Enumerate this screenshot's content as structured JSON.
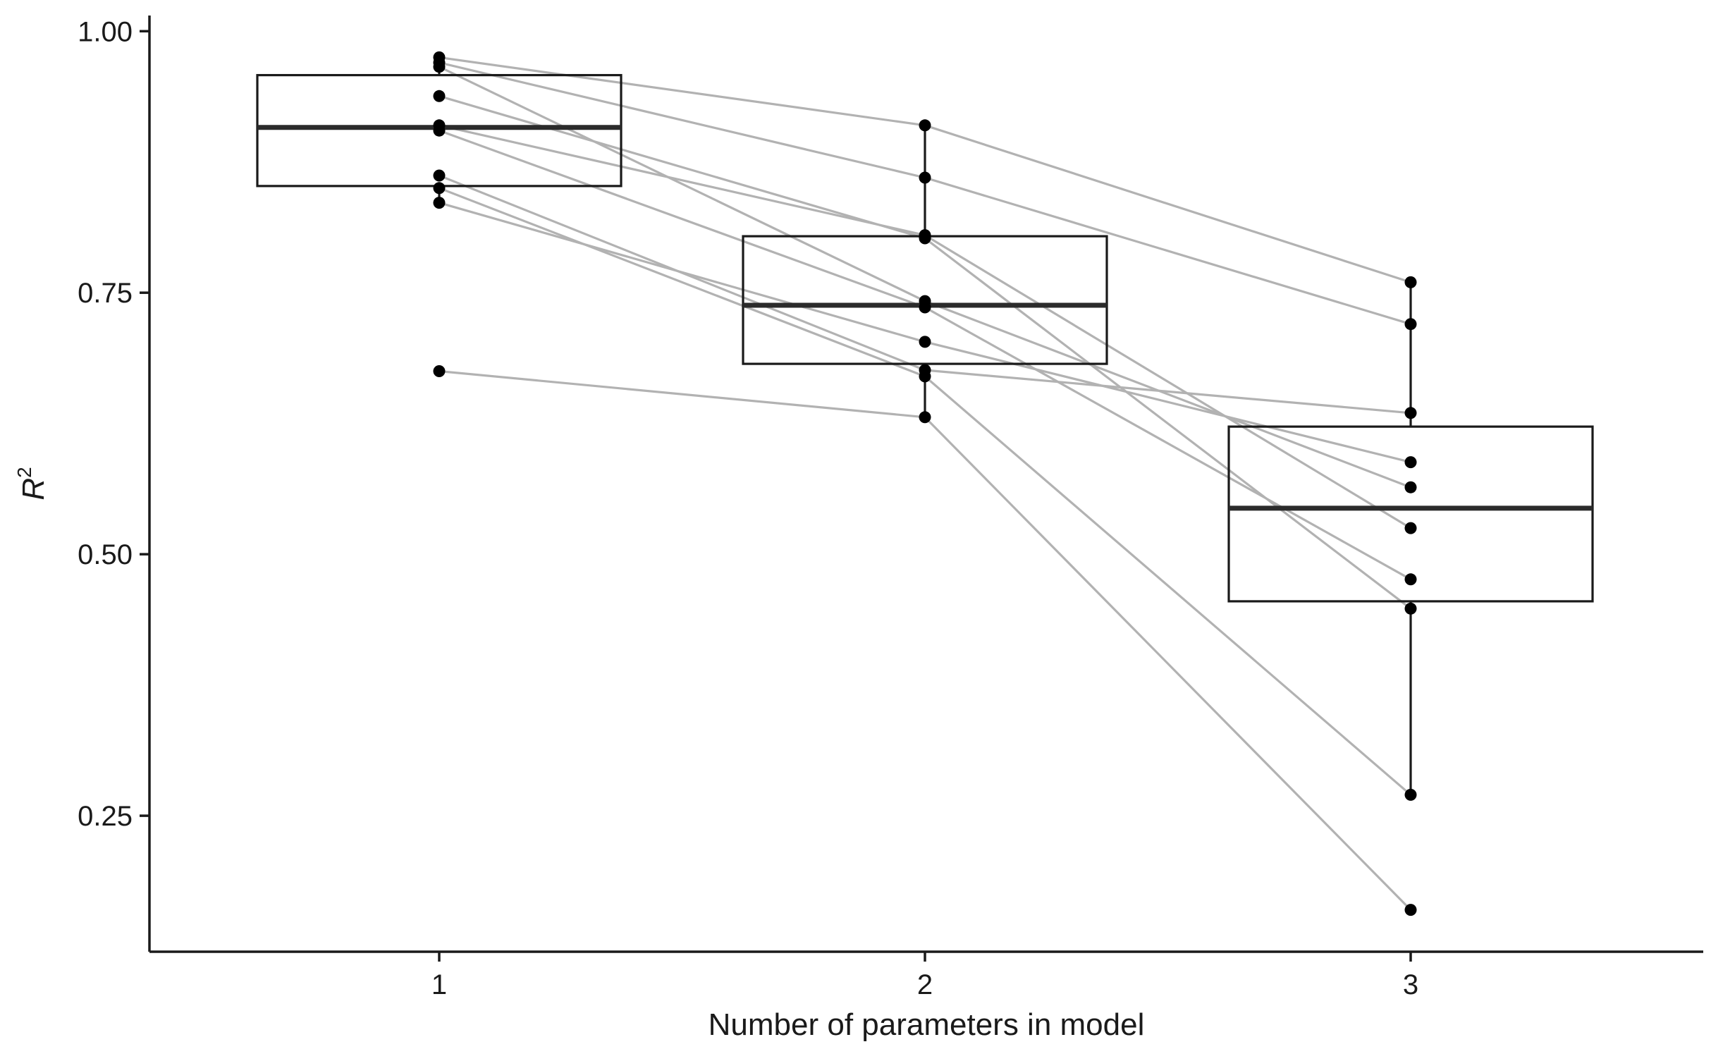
{
  "chart_data": {
    "type": "boxplot",
    "xlabel": "Number of parameters in model",
    "ylabel": {
      "base": "R",
      "superscript": "2"
    },
    "categories": [
      "1",
      "2",
      "3"
    ],
    "x_ticks": [
      "1",
      "2",
      "3"
    ],
    "y_ticks": [
      "0.25",
      "0.50",
      "0.75",
      "1.00"
    ],
    "ylim": [
      0.12,
      1.015
    ],
    "grid": false,
    "legend": "none",
    "boxes": [
      {
        "category": "1",
        "q1": 0.852,
        "median": 0.908,
        "q3": 0.958,
        "whisker_low": 0.836,
        "whisker_high": 0.975
      },
      {
        "category": "2",
        "q1": 0.682,
        "median": 0.738,
        "q3": 0.804,
        "whisker_low": 0.631,
        "whisker_high": 0.91
      },
      {
        "category": "3",
        "q1": 0.455,
        "median": 0.544,
        "q3": 0.622,
        "whisker_low": 0.27,
        "whisker_high": 0.76
      }
    ],
    "subjects": [
      {
        "values": [
          0.975,
          0.91,
          0.76
        ]
      },
      {
        "values": [
          0.97,
          0.86,
          0.72
        ]
      },
      {
        "values": [
          0.966,
          0.742,
          0.564
        ]
      },
      {
        "values": [
          0.938,
          0.802,
          0.448
        ]
      },
      {
        "values": [
          0.91,
          0.805,
          0.525
        ]
      },
      {
        "values": [
          0.905,
          0.736,
          0.476
        ]
      },
      {
        "values": [
          0.862,
          0.676,
          0.635
        ]
      },
      {
        "values": [
          0.85,
          0.67,
          0.27
        ]
      },
      {
        "values": [
          0.836,
          0.703,
          0.588
        ]
      },
      {
        "values": [
          0.675,
          0.631,
          0.16
        ]
      }
    ],
    "colors": {
      "axis": "#1a1a1a",
      "box": "#1a1a1a",
      "median": "#2b2b2b",
      "subject_line": "#b2b2b2",
      "point": "#000000"
    }
  }
}
